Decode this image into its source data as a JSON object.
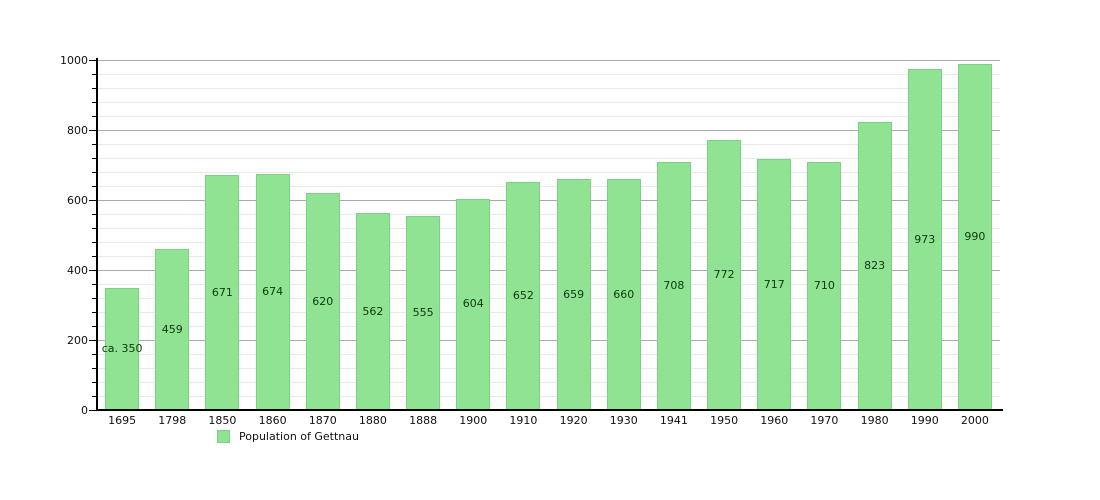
{
  "chart_data": {
    "type": "bar",
    "title": "",
    "xlabel": "",
    "ylabel": "",
    "legend": "Population of Gettnau",
    "legend_position": "bottom-left",
    "categories": [
      "1695",
      "1798",
      "1850",
      "1860",
      "1870",
      "1880",
      "1888",
      "1900",
      "1910",
      "1920",
      "1930",
      "1941",
      "1950",
      "1960",
      "1970",
      "1980",
      "1990",
      "2000"
    ],
    "values": [
      350,
      459,
      671,
      674,
      620,
      562,
      555,
      604,
      652,
      659,
      660,
      708,
      772,
      717,
      710,
      823,
      973,
      990
    ],
    "value_labels": [
      "ca. 350",
      "459",
      "671",
      "674",
      "620",
      "562",
      "555",
      "604",
      "652",
      "659",
      "660",
      "708",
      "772",
      "717",
      "710",
      "823",
      "973",
      "990"
    ],
    "ylim": [
      0,
      1000
    ],
    "yticks": [
      0,
      200,
      400,
      600,
      800,
      1000
    ],
    "ytick_labels": [
      "0",
      "200",
      "400",
      "600",
      "800",
      "1000"
    ],
    "minor_grid_step": 40,
    "grid": true,
    "colors": {
      "bar_fill": "#8fe393",
      "bar_border": "#7dd184",
      "major_grid": "#aaaaaa",
      "minor_grid": "#e9e9e9",
      "axis": "#000000",
      "value_text": "#0b3b0b",
      "tick_text": "#111111"
    }
  }
}
